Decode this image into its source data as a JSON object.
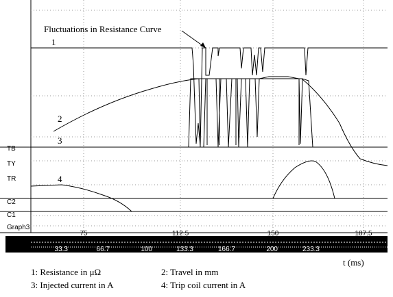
{
  "chart_data": {
    "type": "line",
    "title": "",
    "annotation": "Fluctuations in Resistance Curve",
    "xlabel": "t (ms)",
    "x_unit": "ms",
    "xlim": [
      45,
      195
    ],
    "x_ticks_top": [
      "75",
      "112.5",
      "150",
      "187.5"
    ],
    "x_ticks_bottom": [
      "33.3",
      "66.7",
      "100",
      "133.3",
      "166.7",
      "200",
      "233.3"
    ],
    "grid": "dotted",
    "channel_labels": [
      "TB",
      "TY",
      "TR",
      "C2",
      "C1",
      "Graph3"
    ],
    "curve_numbers": [
      "1",
      "2",
      "3",
      "4"
    ],
    "legend": [
      {
        "number": "1",
        "text": "1: Resistance  in μΩ"
      },
      {
        "number": "2",
        "text": "2: Travel  in mm"
      },
      {
        "number": "3",
        "text": "3: Injected current  in A"
      },
      {
        "number": "4",
        "text": "4: Trip coil current  in A"
      }
    ],
    "series": [
      {
        "id": "1",
        "name": "Resistance in μΩ",
        "values": [
          [
            45,
            1.0
          ],
          [
            109.4,
            1.0
          ],
          [
            118.2,
            1.0
          ],
          [
            144.6,
            1.0
          ],
          [
            145.8,
            1.0
          ],
          [
            195,
            1.0
          ]
        ]
      },
      {
        "id": "2",
        "name": "Travel in mm",
        "values": [
          [
            48.2,
            0.1
          ],
          [
            71.1,
            0.55
          ],
          [
            92.3,
            0.74
          ],
          [
            110.6,
            0.93
          ],
          [
            115.3,
            0.98
          ],
          [
            145,
            0.98
          ],
          [
            155.6,
            0.7
          ],
          [
            165.6,
            0.35
          ],
          [
            178.3,
            0.1
          ],
          [
            195,
            0.02
          ]
        ]
      },
      {
        "id": "3",
        "name": "Injected current in A",
        "values": [
          [
            45,
            0.0
          ],
          [
            115.3,
            0.0
          ],
          [
            117.1,
            0.95
          ],
          [
            139.4,
            0.95
          ],
          [
            145.8,
            0.92
          ],
          [
            156.2,
            0.0
          ],
          [
            195,
            0.0
          ]
        ]
      },
      {
        "id": "4",
        "name": "Trip coil current in A",
        "values": [
          [
            45,
            0.0
          ],
          [
            56,
            0.0
          ],
          [
            86,
            -0.34
          ],
          [
            112.6,
            -0.9
          ],
          [
            147,
            -0.9
          ],
          [
            162,
            0.0
          ],
          [
            170,
            -0.2
          ],
          [
            178.5,
            -0.9
          ],
          [
            195,
            -0.9
          ]
        ]
      }
    ],
    "colors": {
      "background": "#ffffff",
      "line": "#000000",
      "grid": "#999999",
      "axis_bar": "#000000",
      "axis_text": "#ffffff"
    }
  }
}
